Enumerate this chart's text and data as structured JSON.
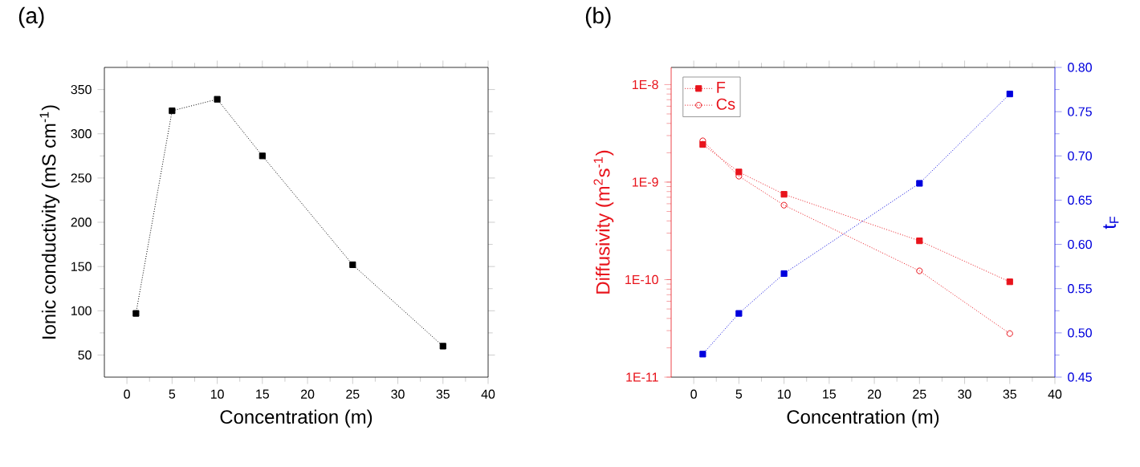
{
  "chart_data": [
    {
      "type": "line",
      "title": "(a)",
      "xlabel": "Concentration (m)",
      "ylabel": "Ionic conductivity (mS cm$^{-1}$)",
      "x": [
        1,
        5,
        10,
        15,
        25,
        35
      ],
      "values": [
        97,
        326,
        339,
        275,
        152,
        60
      ],
      "color": "#000000",
      "marker": "square",
      "line_style": "dotted",
      "xlim": [
        -2.5,
        40
      ],
      "xticks": [
        0,
        5,
        10,
        15,
        20,
        25,
        30,
        35,
        40
      ],
      "ylim": [
        25,
        375
      ],
      "yticks": [
        50,
        100,
        150,
        200,
        250,
        300,
        350
      ]
    },
    {
      "type": "line",
      "title": "(b)",
      "xlabel": "Concentration (m)",
      "ylabel": "Diffusivity (m$^{2}$s$^{-1}$)",
      "y2label": "t$_{F}$",
      "x": [
        1,
        5,
        10,
        25,
        35
      ],
      "series": [
        {
          "name": "F",
          "color": "#e8141c",
          "marker": "square",
          "values": [
            2.43e-09,
            1.27e-09,
            7.5e-10,
            2.5e-10,
            9.5e-11
          ]
        },
        {
          "name": "Cs",
          "color": "#e8141c",
          "marker": "circle",
          "values": [
            2.65e-09,
            1.15e-09,
            5.8e-10,
            1.23e-10,
            2.8e-11
          ]
        },
        {
          "color": "#0000dd",
          "marker": "square",
          "axis": "y2",
          "values": [
            0.476,
            0.522,
            0.567,
            0.669,
            0.77
          ]
        }
      ],
      "line_style": "dotted",
      "log": "y",
      "legend": "top left",
      "xlim": [
        -2.5,
        40
      ],
      "xticks": [
        0,
        5,
        10,
        15,
        20,
        25,
        30,
        35,
        40
      ],
      "ylim": [
        1e-11,
        1.5e-08
      ],
      "yticks": [
        {
          "value": 1e-11,
          "label": "1E-11"
        },
        {
          "value": 1e-10,
          "label": "1E-10"
        },
        {
          "value": 1e-09,
          "label": "1E-9"
        },
        {
          "value": 1e-08,
          "label": "1E-8"
        }
      ],
      "y2lim": [
        0.45,
        0.8
      ],
      "y2ticks": [
        {
          "value": 0.45,
          "label": "0.45"
        },
        {
          "value": 0.5,
          "label": "0.50"
        },
        {
          "value": 0.55,
          "label": "0.55"
        },
        {
          "value": 0.6,
          "label": "0.60"
        },
        {
          "value": 0.65,
          "label": "0.65"
        },
        {
          "value": 0.7,
          "label": "0.70"
        },
        {
          "value": 0.75,
          "label": "0.75"
        },
        {
          "value": 0.8,
          "label": "0.80"
        }
      ]
    }
  ]
}
